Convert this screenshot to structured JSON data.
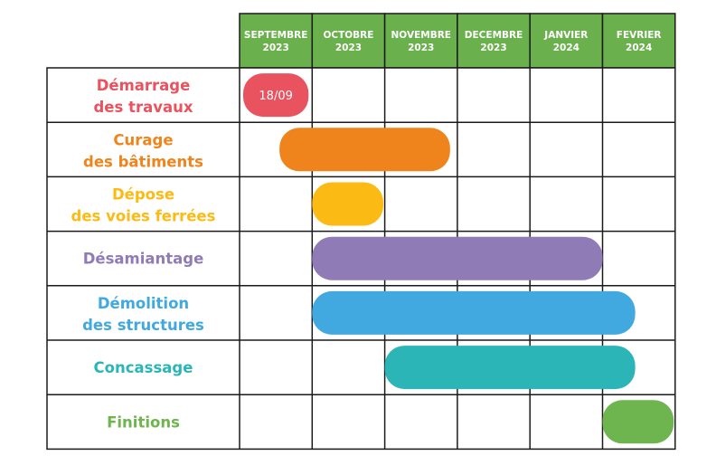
{
  "chart_data": {
    "type": "gantt",
    "months": [
      {
        "line1": "SEPTEMBRE",
        "line2": "2023"
      },
      {
        "line1": "OCTOBRE",
        "line2": "2023"
      },
      {
        "line1": "NOVEMBRE",
        "line2": "2023"
      },
      {
        "line1": "DECEMBRE",
        "line2": "2023"
      },
      {
        "line1": "JANVIER",
        "line2": "2024"
      },
      {
        "line1": "FEVRIER",
        "line2": "2024"
      }
    ],
    "tasks": [
      {
        "line1": "Démarrage",
        "line2": "des travaux",
        "color": "#e8535f",
        "start": 0.05,
        "end": 0.95,
        "label": "18/09"
      },
      {
        "line1": "Curage",
        "line2": "des bâtiments",
        "color": "#f0841c",
        "start": 0.55,
        "end": 2.9,
        "label": ""
      },
      {
        "line1": "Dépose",
        "line2": "des voies ferrées",
        "color": "#fbbb14",
        "start": 1.0,
        "end": 1.98,
        "label": ""
      },
      {
        "line1": "Désamiantage",
        "line2": "",
        "color": "#8f7bb6",
        "start": 1.0,
        "end": 5.0,
        "label": ""
      },
      {
        "line1": "Démolition",
        "line2": "des structures",
        "color": "#41a9df",
        "start": 1.0,
        "end": 5.45,
        "label": ""
      },
      {
        "line1": "Concassage",
        "line2": "",
        "color": "#2bb5b6",
        "start": 2.0,
        "end": 5.45,
        "label": ""
      },
      {
        "line1": "Finitions",
        "line2": "",
        "color": "#6fb54f",
        "start": 5.0,
        "end": 5.98,
        "label": ""
      }
    ],
    "colors": {
      "header": "#6ab04c",
      "grid": "#1a1a1a"
    }
  }
}
